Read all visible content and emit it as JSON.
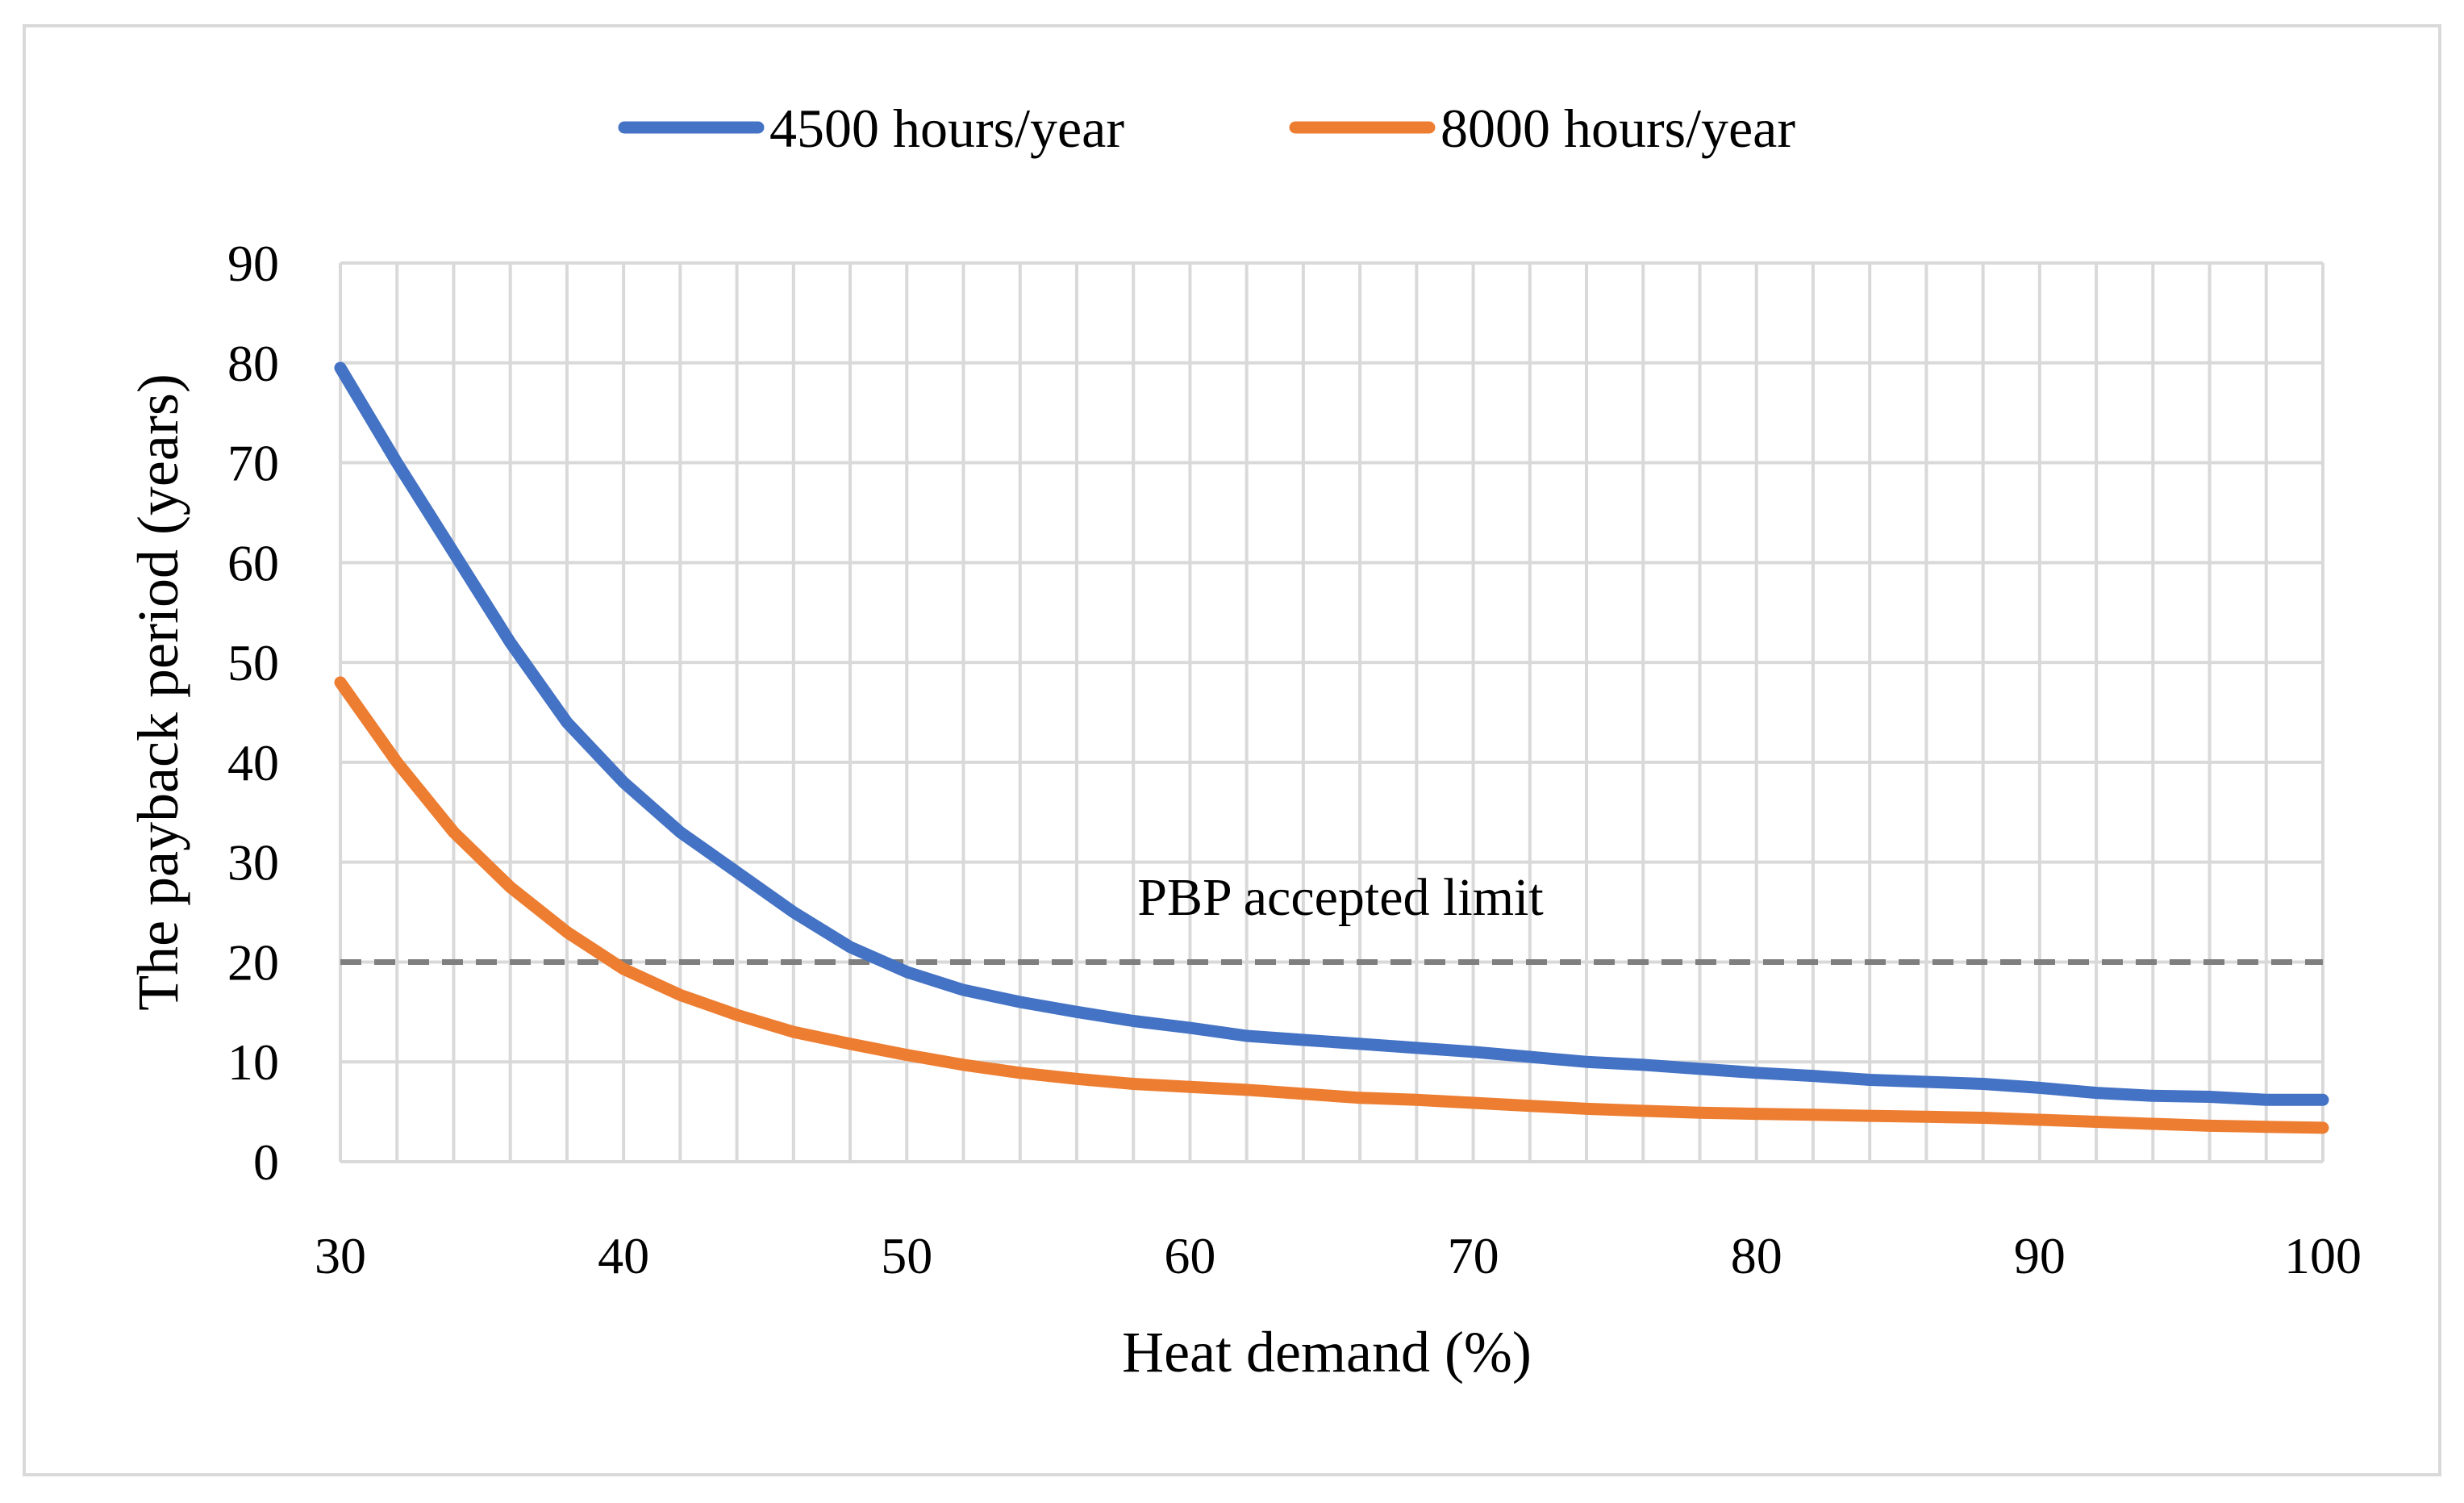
{
  "chart_data": {
    "type": "line",
    "title": "",
    "xlabel": "Heat demand (%)",
    "ylabel": "The payback period (years)",
    "xlim": [
      30,
      100
    ],
    "ylim": [
      0,
      90
    ],
    "x_minor_step": 2,
    "x_ticks": [
      "30",
      "40",
      "50",
      "60",
      "70",
      "80",
      "90",
      "100"
    ],
    "y_ticks": [
      "0",
      "10",
      "20",
      "30",
      "40",
      "50",
      "60",
      "70",
      "80",
      "90"
    ],
    "grid": true,
    "legend_position": "top",
    "x": [
      30,
      32,
      34,
      36,
      38,
      40,
      42,
      44,
      46,
      48,
      50,
      52,
      54,
      56,
      58,
      60,
      62,
      64,
      66,
      68,
      70,
      72,
      74,
      76,
      78,
      80,
      82,
      84,
      86,
      88,
      90,
      92,
      94,
      96,
      98,
      100
    ],
    "series": [
      {
        "name": "4500 hours/year",
        "color": "#4472c4",
        "values": [
          79.5,
          70,
          61,
          52,
          44,
          38,
          33,
          29,
          25,
          21.5,
          19,
          17.2,
          16,
          15,
          14.1,
          13.4,
          12.6,
          12.2,
          11.8,
          11.4,
          11,
          10.5,
          10,
          9.7,
          9.3,
          8.9,
          8.6,
          8.2,
          8,
          7.8,
          7.4,
          6.9,
          6.6,
          6.5,
          6.2,
          6.2
        ]
      },
      {
        "name": "8000 hours/year",
        "color": "#ed7d31",
        "values": [
          48,
          40,
          33,
          27.5,
          23,
          19.3,
          16.7,
          14.7,
          13,
          11.8,
          10.7,
          9.7,
          8.9,
          8.3,
          7.8,
          7.5,
          7.2,
          6.8,
          6.4,
          6.2,
          5.9,
          5.6,
          5.3,
          5.1,
          4.9,
          4.8,
          4.7,
          4.6,
          4.5,
          4.4,
          4.2,
          4,
          3.8,
          3.6,
          3.5,
          3.4
        ]
      }
    ],
    "reference_line": {
      "label": "PBP accepted limit",
      "value": 20,
      "color": "#7f7f7f"
    },
    "gridline_color": "#d9d9d9"
  }
}
